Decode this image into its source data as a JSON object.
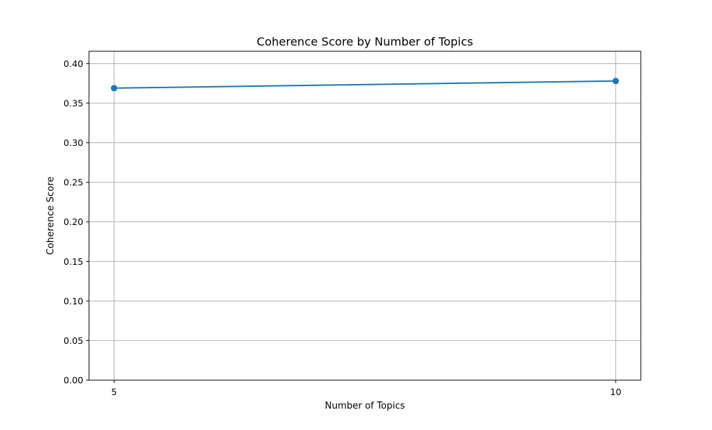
{
  "chart_data": {
    "type": "line",
    "title": "Coherence Score by Number of Topics",
    "xlabel": "Number of Topics",
    "ylabel": "Coherence Score",
    "x": [
      5,
      10
    ],
    "y": [
      0.369,
      0.378
    ],
    "xticks": [
      5,
      10
    ],
    "xtick_labels": [
      "5",
      "10"
    ],
    "yticks": [
      0,
      0.05,
      0.1,
      0.15,
      0.2,
      0.25,
      0.3,
      0.35,
      0.4
    ],
    "ytick_labels": [
      "0.00",
      "0.05",
      "0.10",
      "0.15",
      "0.20",
      "0.25",
      "0.30",
      "0.35",
      "0.40"
    ],
    "xlim": [
      4.75,
      10.25
    ],
    "ylim": [
      0,
      0.4156
    ],
    "grid": true,
    "marker": "circle",
    "line_color": "#1f77b4",
    "grid_color": "#b0b0b0",
    "legend": false
  }
}
